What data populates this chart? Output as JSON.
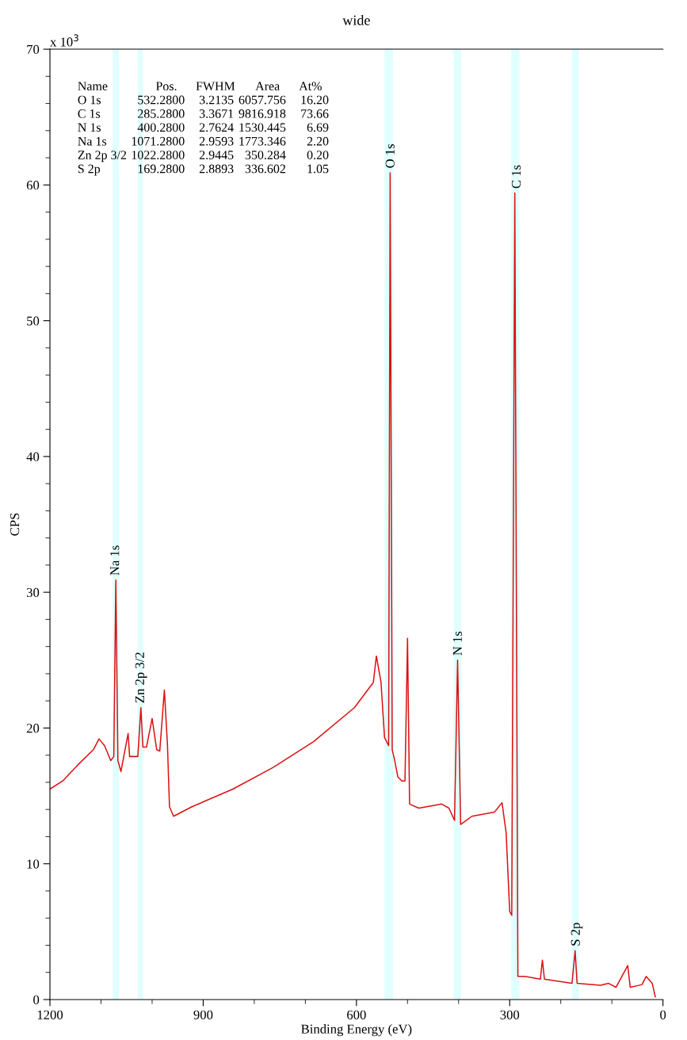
{
  "chart_data": {
    "type": "line",
    "title": "wide",
    "xlabel": "Binding Energy (eV)",
    "ylabel": "CPS",
    "x": [
      1200,
      1175,
      1145,
      1115,
      1104,
      1093,
      1081,
      1075,
      1071,
      1067,
      1061,
      1047,
      1044,
      1028,
      1022,
      1018,
      1011,
      1000,
      991,
      985,
      976,
      970,
      966,
      958,
      922,
      842,
      763,
      684,
      604,
      567,
      561,
      552,
      545,
      537,
      534,
      530,
      525,
      519,
      511,
      505,
      500,
      496,
      478,
      433,
      419,
      408,
      402,
      396,
      374,
      330,
      315,
      307,
      300,
      296,
      290,
      284,
      270,
      240,
      236,
      232,
      196,
      178,
      172,
      168,
      122,
      107,
      92,
      69,
      64,
      41,
      33,
      21,
      15
    ],
    "series": [
      {
        "color": "#dd1111",
        "values": [
          15.5,
          16.1,
          17.3,
          18.4,
          19.2,
          18.7,
          17.6,
          17.9,
          30.9,
          17.6,
          16.8,
          19.6,
          17.9,
          17.9,
          21.5,
          18.6,
          18.6,
          20.7,
          18.4,
          18.3,
          22.8,
          18.8,
          14.2,
          13.5,
          14.2,
          15.5,
          17.1,
          19.0,
          21.5,
          23.35,
          25.3,
          23.4,
          19.3,
          18.7,
          60.9,
          18.4,
          17.6,
          16.4,
          16.1,
          16.1,
          26.6,
          14.4,
          14.1,
          14.4,
          14.1,
          13.2,
          25.0,
          12.9,
          13.5,
          13.8,
          14.5,
          12.3,
          6.5,
          6.2,
          59.4,
          1.7,
          1.7,
          1.5,
          2.9,
          1.5,
          1.3,
          1.2,
          3.6,
          1.2,
          1.05,
          1.2,
          0.9,
          2.5,
          0.9,
          1.1,
          1.7,
          1.2,
          0.2
        ]
      }
    ],
    "xlim": [
      1200,
      0
    ],
    "xticks": [
      1200,
      {
        "value": 1100,
        "label": null
      },
      {
        "value": 1000,
        "label": null
      },
      900,
      {
        "value": 800,
        "label": null
      },
      {
        "value": 700,
        "label": null
      },
      600,
      {
        "value": 500,
        "label": null
      },
      {
        "value": 400,
        "label": null
      },
      300,
      {
        "value": 200,
        "label": null
      },
      {
        "value": 100,
        "label": null
      },
      0
    ],
    "ylim": [
      0,
      70
    ],
    "yticks": [
      0,
      {
        "value": 2,
        "label": null
      },
      {
        "value": 4,
        "label": null
      },
      {
        "value": 6,
        "label": null
      },
      {
        "value": 8,
        "label": null
      },
      10,
      {
        "value": 12,
        "label": null
      },
      {
        "value": 14,
        "label": null
      },
      {
        "value": 16,
        "label": null
      },
      {
        "value": 18,
        "label": null
      },
      20,
      {
        "value": 22,
        "label": null
      },
      {
        "value": 24,
        "label": null
      },
      {
        "value": 26,
        "label": null
      },
      {
        "value": 28,
        "label": null
      },
      30,
      {
        "value": 32,
        "label": null
      },
      {
        "value": 34,
        "label": null
      },
      {
        "value": 36,
        "label": null
      },
      {
        "value": 38,
        "label": null
      },
      40,
      {
        "value": 42,
        "label": null
      },
      {
        "value": 44,
        "label": null
      },
      {
        "value": 46,
        "label": null
      },
      {
        "value": 48,
        "label": null
      },
      50,
      {
        "value": 52,
        "label": null
      },
      {
        "value": 54,
        "label": null
      },
      {
        "value": 56,
        "label": null
      },
      {
        "value": 58,
        "label": null
      },
      60,
      {
        "value": 62,
        "label": null
      },
      {
        "value": 64,
        "label": null
      },
      {
        "value": 66,
        "label": null
      },
      {
        "value": 68,
        "label": null
      },
      70
    ],
    "bands": [
      {
        "axis": "x",
        "from": 1077,
        "to": 1065,
        "color": "#e0ffff"
      },
      {
        "axis": "x",
        "from": 1028,
        "to": 1018,
        "color": "#e0ffff"
      },
      {
        "axis": "x",
        "from": 545,
        "to": 528,
        "color": "#e0ffff"
      },
      {
        "axis": "x",
        "from": 410,
        "to": 395,
        "color": "#e0ffff"
      },
      {
        "axis": "x",
        "from": 297,
        "to": 281,
        "color": "#e0ffff"
      },
      {
        "axis": "x",
        "from": 178,
        "to": 165,
        "color": "#e0ffff"
      }
    ],
    "annotations": [
      "x 10$^{3}$",
      "Name",
      "Pos.",
      "FWHM",
      "Area",
      "At%",
      "O 1s",
      "532.2800",
      "3.2135",
      "6057.756",
      "16.20",
      "C 1s",
      "285.2800",
      "3.3671",
      "9816.918",
      "73.66",
      "N 1s",
      "400.2800",
      "2.7624",
      "1530.445",
      "6.69",
      "Na 1s",
      "1071.2800",
      "2.9593",
      "1773.346",
      "2.20",
      "Zn 2p 3/2",
      "1022.2800",
      "2.9445",
      "350.284",
      "0.20",
      "S 2p",
      "169.2800",
      "2.8893",
      "336.602",
      "1.05",
      {
        "text": "O 1s",
        "x": 532,
        "y": 60.9
      },
      {
        "text": "C 1s",
        "x": 285,
        "y": 59.4
      },
      {
        "text": "Na 1s",
        "x": 1071,
        "y": 30.9
      },
      {
        "text": "Zn 2p 3/2",
        "x": 1022,
        "y": 21.5
      },
      {
        "text": "N 1s",
        "x": 400,
        "y": 25.0
      },
      {
        "text": "S 2p",
        "x": 169,
        "y": 3.6
      }
    ],
    "legend": false,
    "grid": false
  }
}
